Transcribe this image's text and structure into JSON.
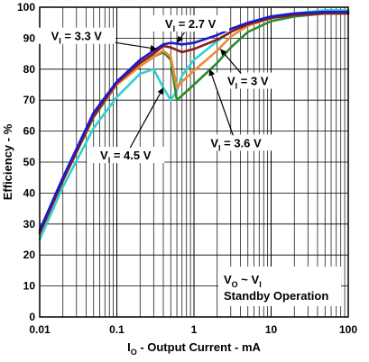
{
  "chart_data": {
    "type": "line",
    "xlabel_prefix": "I",
    "xlabel_sub": "O",
    "xlabel_rest": " - Output Current - mA",
    "ylabel": "Efficiency - %",
    "xscale": "log",
    "xlim": [
      0.01,
      100
    ],
    "ylim": [
      0,
      100
    ],
    "grid": true,
    "x_ticks": [
      {
        "value": 0.01,
        "label": "0.01"
      },
      {
        "value": 0.1,
        "label": "0.1"
      },
      {
        "value": 1,
        "label": "1"
      },
      {
        "value": 10,
        "label": "10"
      },
      {
        "value": 100,
        "label": "100"
      }
    ],
    "y_ticks": [
      0,
      10,
      20,
      30,
      40,
      50,
      60,
      70,
      80,
      90,
      100
    ],
    "annotation": {
      "line1_prefix": "V",
      "line1_sub": "O",
      "line1_mid": " ~ ",
      "line1_prefix2": "V",
      "line1_sub2": "I",
      "line2": "Standby Operation"
    },
    "series": [
      {
        "name_prefix": "V",
        "name_sub": "I",
        "name_rest": " = 2.7 V",
        "color": "#1a1acc",
        "x": [
          0.01,
          0.02,
          0.05,
          0.1,
          0.2,
          0.3,
          0.4,
          0.5,
          0.7,
          1,
          2,
          3,
          5,
          10,
          20,
          50,
          100
        ],
        "y": [
          28,
          45,
          66,
          76,
          83,
          86,
          88,
          88.5,
          88,
          88.5,
          91,
          93,
          95,
          97,
          98,
          98.5,
          98.5
        ]
      },
      {
        "name_prefix": "V",
        "name_sub": "I",
        "name_rest": " = 3.3 V",
        "color": "#8b1a1a",
        "x": [
          0.01,
          0.02,
          0.05,
          0.1,
          0.2,
          0.3,
          0.4,
          0.5,
          0.7,
          1,
          2,
          3,
          5,
          10,
          20,
          50,
          100
        ],
        "y": [
          27,
          44,
          65,
          75.5,
          82,
          85,
          87.5,
          87,
          85.5,
          86.5,
          89.5,
          92,
          94.5,
          96.5,
          97.5,
          98,
          98
        ]
      },
      {
        "name_prefix": "V",
        "name_sub": "I",
        "name_rest": " = 3 V",
        "color": "#f08a30",
        "x": [
          0.01,
          0.02,
          0.05,
          0.1,
          0.2,
          0.3,
          0.4,
          0.5,
          0.6,
          0.7,
          1,
          2,
          3,
          5,
          10,
          20,
          50,
          100
        ],
        "y": [
          27,
          44,
          65,
          75,
          81,
          84,
          86,
          84,
          74,
          76,
          79.5,
          86,
          90.5,
          94,
          96.5,
          97.5,
          98,
          98
        ]
      },
      {
        "name_prefix": "V",
        "name_sub": "I",
        "name_rest": " = 3.6 V",
        "color": "#2a8a2a",
        "x": [
          0.01,
          0.02,
          0.05,
          0.1,
          0.2,
          0.3,
          0.4,
          0.5,
          0.6,
          0.7,
          1,
          2,
          3,
          5,
          10,
          20,
          50,
          100
        ],
        "y": [
          27,
          44,
          64.5,
          75,
          81,
          84,
          85.5,
          83,
          70,
          71.5,
          75,
          82,
          87,
          92,
          95.5,
          97,
          98,
          98
        ]
      },
      {
        "name_prefix": "V",
        "name_sub": "I",
        "name_rest": " = 4.5 V",
        "color": "#30d0d0",
        "x": [
          0.01,
          0.02,
          0.05,
          0.1,
          0.2,
          0.3,
          0.4,
          0.5,
          0.6,
          0.7,
          1,
          2,
          3,
          5,
          10,
          20,
          50,
          100
        ],
        "y": [
          25,
          42,
          61,
          71,
          78.5,
          80,
          74,
          70,
          73,
          78,
          83,
          89,
          92,
          95,
          97,
          98,
          99,
          99
        ]
      }
    ],
    "callouts": [
      {
        "series": 0,
        "label_x": 0.9,
        "label_y": 94.5,
        "point_x": 0.6,
        "point_y": 88.5
      },
      {
        "series": 1,
        "label_x": 0.03,
        "label_y": 90.5,
        "point_x": 0.33,
        "point_y": 86.5
      },
      {
        "series": 2,
        "label_x": 5,
        "label_y": 76,
        "point_x": 2.2,
        "point_y": 86.5
      },
      {
        "series": 3,
        "label_x": 3.5,
        "label_y": 56,
        "point_x": 1.6,
        "point_y": 80
      },
      {
        "series": 4,
        "label_x": 0.13,
        "label_y": 52,
        "point_x": 0.4,
        "point_y": 74
      }
    ]
  }
}
